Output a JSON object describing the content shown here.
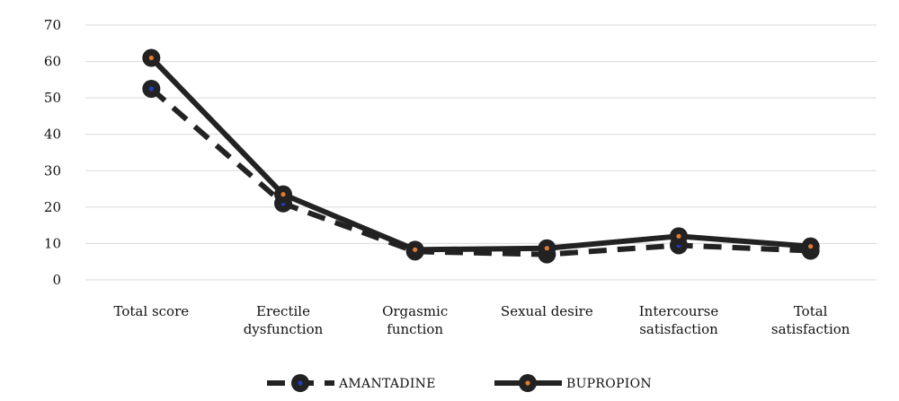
{
  "chart_data": {
    "type": "line",
    "title": "",
    "xlabel": "",
    "ylabel": "",
    "categories": [
      [
        "Total score"
      ],
      [
        "Erectile",
        "dysfunction"
      ],
      [
        "Orgasmic",
        "function"
      ],
      [
        "Sexual desire"
      ],
      [
        "Intercourse",
        "satisfaction"
      ],
      [
        "Total",
        "satisfaction"
      ]
    ],
    "y_ticks": [
      "0",
      "10",
      "20",
      "30",
      "40",
      "50",
      "60",
      "70"
    ],
    "ylim": [
      0,
      70
    ],
    "grid": "horizontal",
    "legend_position": "bottom",
    "series": [
      {
        "name": "AMANTADINE",
        "values": [
          52.5,
          21,
          7.8,
          7,
          9.5,
          8
        ],
        "line_style": "dashed",
        "line_color": "#222222",
        "marker_dot_color": "#1f3fbf"
      },
      {
        "name": "BUPROPION",
        "values": [
          61,
          23.5,
          8.3,
          8.7,
          12,
          9.2
        ],
        "line_style": "solid",
        "line_color": "#222222",
        "marker_dot_color": "#e07b30"
      }
    ]
  }
}
